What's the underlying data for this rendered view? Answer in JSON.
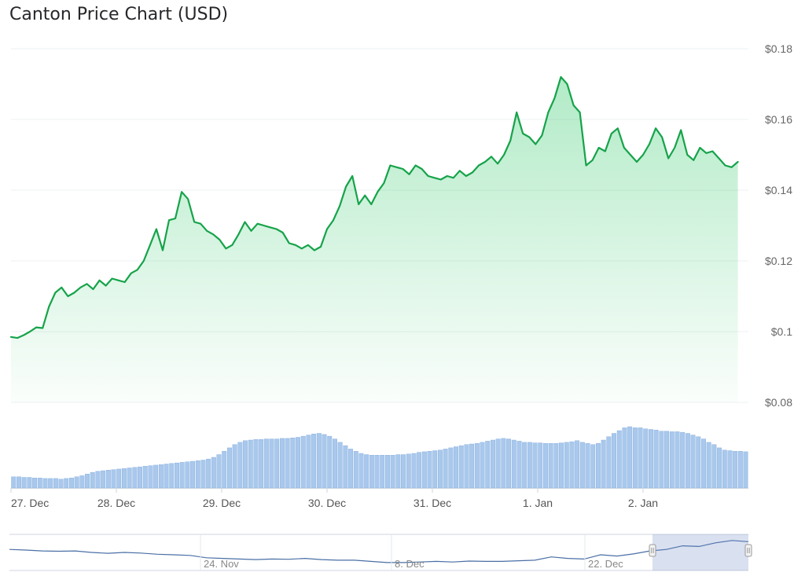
{
  "page": {
    "title": "Canton Price Chart (USD)"
  },
  "chart_data": {
    "type": "line",
    "title": "Canton Price Chart (USD)",
    "y_ticks": [
      "$0.18",
      "$0.16",
      "$0.14",
      "$0.12",
      "$0.1",
      "$0.08"
    ],
    "y_tick_values": [
      0.18,
      0.16,
      0.14,
      0.12,
      0.1,
      0.08
    ],
    "ylim": [
      0.08,
      0.18
    ],
    "x_ticks": [
      "27. Dec",
      "28. Dec",
      "29. Dec",
      "30. Dec",
      "31. Dec",
      "1. Jan",
      "2. Jan"
    ],
    "x_tick_days": [
      0,
      1,
      2,
      3,
      4,
      5,
      6
    ],
    "xlim_days": [
      0,
      7
    ],
    "colors": {
      "line": "#16a34a",
      "fill": "#22c55e",
      "volume": "#a9c8ec",
      "navigator": "#4a6fa5"
    },
    "series": [
      {
        "values_x_days": [
          0,
          0.06,
          0.12,
          0.18,
          0.24,
          0.3,
          0.36,
          0.42,
          0.48,
          0.54,
          0.6,
          0.66,
          0.72,
          0.78,
          0.84,
          0.9,
          0.96,
          1.02,
          1.08,
          1.14,
          1.2,
          1.26,
          1.32,
          1.38,
          1.44,
          1.5,
          1.56,
          1.62,
          1.68,
          1.74,
          1.8,
          1.86,
          1.92,
          1.98,
          2.04,
          2.1,
          2.16,
          2.22,
          2.28,
          2.34,
          2.4,
          2.46,
          2.52,
          2.58,
          2.64,
          2.7,
          2.76,
          2.82,
          2.88,
          2.94,
          3.0,
          3.06,
          3.12,
          3.18,
          3.24,
          3.3,
          3.36,
          3.42,
          3.48,
          3.54,
          3.6,
          3.66,
          3.72,
          3.78,
          3.84,
          3.9,
          3.96,
          4.02,
          4.08,
          4.14,
          4.2,
          4.26,
          4.32,
          4.38,
          4.44,
          4.5,
          4.56,
          4.62,
          4.68,
          4.74,
          4.8,
          4.86,
          4.92,
          4.98,
          5.04,
          5.1,
          5.16,
          5.22,
          5.28,
          5.34,
          5.4,
          5.46,
          5.52,
          5.58,
          5.64,
          5.7,
          5.76,
          5.82,
          5.88,
          5.94,
          6.0,
          6.06,
          6.12,
          6.18,
          6.24,
          6.3,
          6.36,
          6.42,
          6.48,
          6.54,
          6.6,
          6.66,
          6.72,
          6.78,
          6.84,
          6.9
        ],
        "values": [
          0.0985,
          0.0982,
          0.099,
          0.1,
          0.1012,
          0.101,
          0.107,
          0.111,
          0.1125,
          0.11,
          0.111,
          0.1125,
          0.1135,
          0.112,
          0.1145,
          0.113,
          0.115,
          0.1145,
          0.114,
          0.1165,
          0.1175,
          0.12,
          0.1245,
          0.129,
          0.123,
          0.1315,
          0.132,
          0.1395,
          0.1375,
          0.131,
          0.1305,
          0.1285,
          0.1275,
          0.126,
          0.1235,
          0.1245,
          0.1275,
          0.131,
          0.1285,
          0.1305,
          0.13,
          0.1295,
          0.129,
          0.128,
          0.125,
          0.1245,
          0.1235,
          0.1245,
          0.123,
          0.124,
          0.129,
          0.1315,
          0.1355,
          0.141,
          0.144,
          0.136,
          0.1385,
          0.136,
          0.1395,
          0.142,
          0.147,
          0.1465,
          0.146,
          0.1445,
          0.147,
          0.146,
          0.144,
          0.1435,
          0.143,
          0.144,
          0.1435,
          0.1455,
          0.144,
          0.145,
          0.147,
          0.148,
          0.1495,
          0.1475,
          0.15,
          0.154,
          0.162,
          0.156,
          0.155,
          0.153,
          0.1555,
          0.162,
          0.166,
          0.172,
          0.17,
          0.164,
          0.162,
          0.147,
          0.1485,
          0.152,
          0.151,
          0.156,
          0.1575,
          0.152,
          0.15,
          0.148,
          0.15,
          0.153,
          0.1575,
          0.155,
          0.149,
          0.152,
          0.157,
          0.15,
          0.1485,
          0.152,
          0.1505,
          0.151,
          0.149,
          0.147,
          0.1465,
          0.148
        ]
      }
    ],
    "volume": {
      "values": [
        20,
        20,
        19,
        19,
        18,
        18,
        17,
        17,
        17,
        16,
        17,
        18,
        20,
        22,
        25,
        28,
        30,
        31,
        32,
        33,
        34,
        35,
        36,
        37,
        38,
        39,
        40,
        41,
        42,
        43,
        44,
        45,
        46,
        47,
        48,
        49,
        50,
        52,
        55,
        60,
        66,
        72,
        78,
        82,
        85,
        86,
        87,
        87,
        88,
        88,
        88,
        89,
        89,
        90,
        91,
        93,
        95,
        97,
        98,
        96,
        93,
        88,
        82,
        76,
        70,
        66,
        62,
        60,
        59,
        59,
        59,
        59,
        59,
        60,
        60,
        61,
        62,
        64,
        65,
        66,
        67,
        68,
        70,
        72,
        74,
        76,
        78,
        79,
        80,
        82,
        84,
        86,
        88,
        89,
        88,
        86,
        84,
        82,
        82,
        81,
        81,
        80,
        80,
        80,
        81,
        82,
        83,
        85,
        82,
        80,
        78,
        80,
        86,
        92,
        98,
        103,
        108,
        110,
        108,
        108,
        106,
        105,
        104,
        102,
        102,
        101,
        101,
        100,
        98,
        95,
        92,
        88,
        82,
        78,
        72,
        68,
        67,
        66,
        66,
        65
      ]
    },
    "navigator": {
      "labels": [
        "24. Nov",
        "8. Dec",
        "22. Dec"
      ],
      "series": [
        0.6,
        0.58,
        0.55,
        0.54,
        0.55,
        0.5,
        0.47,
        0.5,
        0.48,
        0.44,
        0.42,
        0.4,
        0.32,
        0.3,
        0.28,
        0.26,
        0.28,
        0.27,
        0.3,
        0.26,
        0.24,
        0.24,
        0.2,
        0.16,
        0.16,
        0.18,
        0.2,
        0.18,
        0.21,
        0.2,
        0.2,
        0.22,
        0.24,
        0.35,
        0.3,
        0.28,
        0.42,
        0.38,
        0.45,
        0.55,
        0.6,
        0.72,
        0.7,
        0.82,
        0.9,
        0.86
      ]
    }
  }
}
